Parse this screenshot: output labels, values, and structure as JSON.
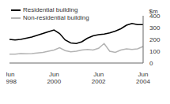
{
  "chart_data": {
    "type": "line",
    "y_label": "$m",
    "categories": [
      "Jun 1998",
      null,
      null,
      null,
      null,
      null,
      null,
      null,
      "Jun 2000",
      null,
      null,
      null,
      null,
      null,
      null,
      null,
      "Jun 2002",
      null,
      null,
      null,
      null,
      null,
      null,
      null,
      "Jun 2004"
    ],
    "series": [
      {
        "name": "Residential building",
        "color": "#000000",
        "values": [
          200,
          195,
          200,
          210,
          220,
          235,
          250,
          265,
          280,
          250,
          195,
          170,
          165,
          180,
          210,
          230,
          240,
          245,
          255,
          270,
          290,
          320,
          335,
          325,
          325
        ]
      },
      {
        "name": "Non-residential building",
        "color": "#b4b4b4",
        "values": [
          75,
          75,
          80,
          78,
          80,
          85,
          90,
          100,
          110,
          130,
          105,
          95,
          100,
          110,
          115,
          110,
          125,
          165,
          100,
          90,
          110,
          120,
          115,
          120,
          140
        ]
      }
    ],
    "ylim": [
      0,
      400
    ],
    "yticks": [
      0,
      100,
      200,
      300,
      400
    ],
    "grid": false,
    "legend": "top-left"
  }
}
